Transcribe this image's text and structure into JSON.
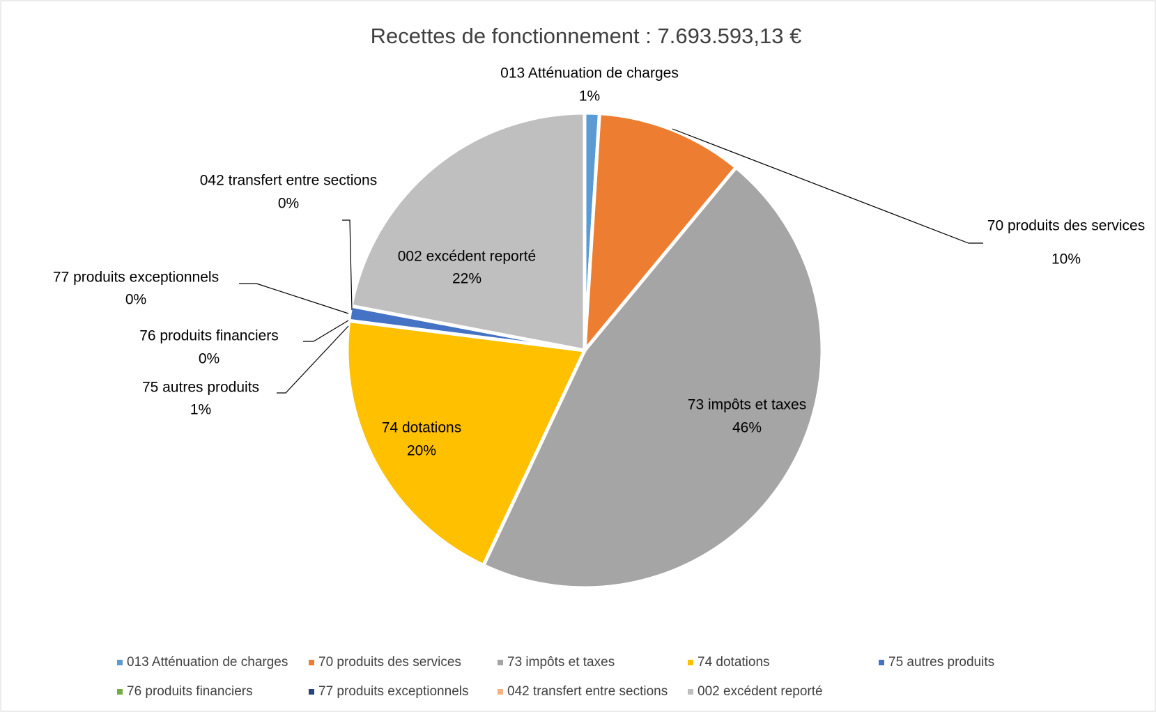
{
  "chart_data": {
    "type": "pie",
    "title": "Recettes de fonctionnement : 7.693.593,13 €",
    "categories": [
      "013 Atténuation de charges",
      "70 produits des services",
      "73 impôts et taxes",
      "74 dotations",
      "75 autres produits",
      "76 produits financiers",
      "77 produits exceptionnels",
      "042 transfert entre sections",
      "002 excédent reporté"
    ],
    "values": [
      1,
      10,
      46,
      20,
      1,
      0,
      0,
      0,
      22
    ],
    "value_labels": [
      "1%",
      "10%",
      "46%",
      "20%",
      "1%",
      "0%",
      "0%",
      "0%",
      "22%"
    ],
    "colors": [
      "#5b9bd5",
      "#ed7d31",
      "#a5a5a5",
      "#ffc000",
      "#4472c4",
      "#70ad47",
      "#264478",
      "#f4b183",
      "#bfbfbf"
    ],
    "legend": "bottom"
  }
}
